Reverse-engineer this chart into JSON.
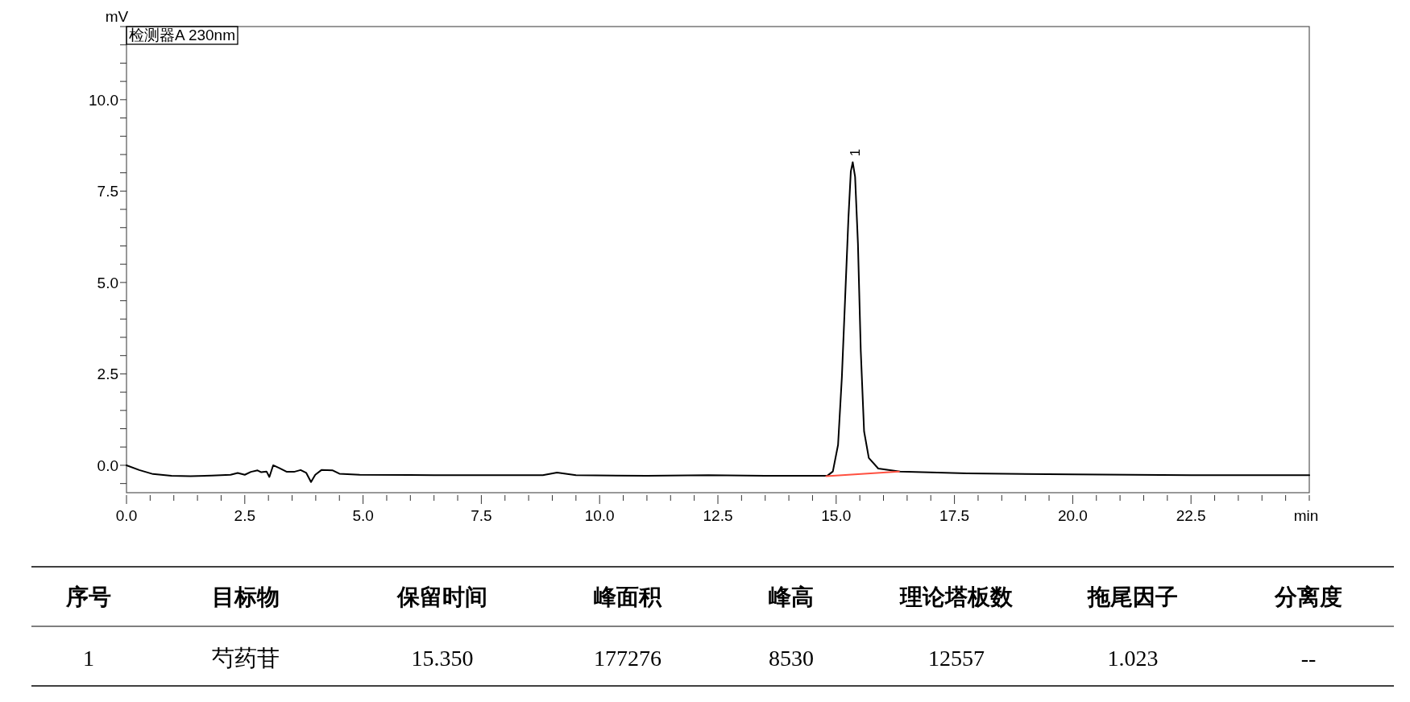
{
  "chart_data": {
    "type": "line",
    "title": "检测器A 230nm",
    "xlabel": "min",
    "ylabel": "mV",
    "xlim": [
      0,
      25
    ],
    "ylim": [
      -0.75,
      12
    ],
    "xticks": [
      {
        "value": 0,
        "label": "0.0"
      },
      {
        "value": 0.5,
        "label": null
      },
      {
        "value": 1,
        "label": null
      },
      {
        "value": 1.5,
        "label": null
      },
      {
        "value": 2,
        "label": null
      },
      {
        "value": 2.5,
        "label": "2.5"
      },
      {
        "value": 3,
        "label": null
      },
      {
        "value": 3.5,
        "label": null
      },
      {
        "value": 4,
        "label": null
      },
      {
        "value": 4.5,
        "label": null
      },
      {
        "value": 5,
        "label": "5.0"
      },
      {
        "value": 5.5,
        "label": null
      },
      {
        "value": 6,
        "label": null
      },
      {
        "value": 6.5,
        "label": null
      },
      {
        "value": 7,
        "label": null
      },
      {
        "value": 7.5,
        "label": "7.5"
      },
      {
        "value": 8,
        "label": null
      },
      {
        "value": 8.5,
        "label": null
      },
      {
        "value": 9,
        "label": null
      },
      {
        "value": 9.5,
        "label": null
      },
      {
        "value": 10,
        "label": "10.0"
      },
      {
        "value": 10.5,
        "label": null
      },
      {
        "value": 11,
        "label": null
      },
      {
        "value": 11.5,
        "label": null
      },
      {
        "value": 12,
        "label": null
      },
      {
        "value": 12.5,
        "label": "12.5"
      },
      {
        "value": 13,
        "label": null
      },
      {
        "value": 13.5,
        "label": null
      },
      {
        "value": 14,
        "label": null
      },
      {
        "value": 14.5,
        "label": null
      },
      {
        "value": 15,
        "label": "15.0"
      },
      {
        "value": 15.5,
        "label": null
      },
      {
        "value": 16,
        "label": null
      },
      {
        "value": 16.5,
        "label": null
      },
      {
        "value": 17,
        "label": null
      },
      {
        "value": 17.5,
        "label": "17.5"
      },
      {
        "value": 18,
        "label": null
      },
      {
        "value": 18.5,
        "label": null
      },
      {
        "value": 19,
        "label": null
      },
      {
        "value": 19.5,
        "label": null
      },
      {
        "value": 20,
        "label": "20.0"
      },
      {
        "value": 20.5,
        "label": null
      },
      {
        "value": 21,
        "label": null
      },
      {
        "value": 21.5,
        "label": null
      },
      {
        "value": 22,
        "label": null
      },
      {
        "value": 22.5,
        "label": "22.5"
      },
      {
        "value": 23,
        "label": null
      },
      {
        "value": 23.5,
        "label": null
      },
      {
        "value": 24,
        "label": null
      },
      {
        "value": 24.5,
        "label": null
      },
      {
        "value": 25,
        "label": null
      }
    ],
    "yticks": [
      {
        "value": -0.5,
        "label": null
      },
      {
        "value": 0,
        "label": "0.0"
      },
      {
        "value": 0.5,
        "label": null
      },
      {
        "value": 1,
        "label": null
      },
      {
        "value": 1.5,
        "label": null
      },
      {
        "value": 2,
        "label": null
      },
      {
        "value": 2.5,
        "label": "2.5"
      },
      {
        "value": 3,
        "label": null
      },
      {
        "value": 3.5,
        "label": null
      },
      {
        "value": 4,
        "label": null
      },
      {
        "value": 4.5,
        "label": null
      },
      {
        "value": 5,
        "label": "5.0"
      },
      {
        "value": 5.5,
        "label": null
      },
      {
        "value": 6,
        "label": null
      },
      {
        "value": 6.5,
        "label": null
      },
      {
        "value": 7,
        "label": null
      },
      {
        "value": 7.5,
        "label": "7.5"
      },
      {
        "value": 8,
        "label": null
      },
      {
        "value": 8.5,
        "label": null
      },
      {
        "value": 9,
        "label": null
      },
      {
        "value": 9.5,
        "label": null
      },
      {
        "value": 10,
        "label": "10.0"
      },
      {
        "value": 10.5,
        "label": null
      },
      {
        "value": 11,
        "label": null
      },
      {
        "value": 11.5,
        "label": null
      },
      {
        "value": 12,
        "label": null
      }
    ],
    "grid": false,
    "series": [
      {
        "color": "#000000",
        "x": [
          0,
          0.27,
          0.56,
          0.95,
          1.35,
          1.8,
          2.2,
          2.35,
          2.5,
          2.63,
          2.77,
          2.85,
          2.96,
          3.02,
          3.1,
          3.22,
          3.39,
          3.54,
          3.68,
          3.8,
          3.9,
          3.99,
          4.12,
          4.36,
          4.5,
          4.93,
          6.5,
          8.8,
          9.1,
          9.5,
          11,
          12.3,
          13.5,
          14.81,
          14.93,
          15.04,
          15.12,
          15.19,
          15.26,
          15.31,
          15.35,
          15.4,
          15.46,
          15.52,
          15.59,
          15.69,
          15.89,
          16.35,
          17.77,
          20,
          22.5,
          25
        ],
        "values": [
          0,
          -0.13,
          -0.24,
          -0.29,
          -0.3,
          -0.28,
          -0.26,
          -0.21,
          -0.26,
          -0.18,
          -0.14,
          -0.19,
          -0.17,
          -0.32,
          0,
          -0.07,
          -0.18,
          -0.18,
          -0.13,
          -0.21,
          -0.46,
          -0.26,
          -0.13,
          -0.14,
          -0.23,
          -0.26,
          -0.27,
          -0.27,
          -0.2,
          -0.27,
          -0.29,
          -0.27,
          -0.29,
          -0.29,
          -0.17,
          0.56,
          2.4,
          4.59,
          6.79,
          8.04,
          8.29,
          7.89,
          6.07,
          3.13,
          0.93,
          0.2,
          -0.09,
          -0.17,
          -0.22,
          -0.25,
          -0.27,
          -0.27
        ]
      },
      {
        "color": "#ff5040",
        "x": [
          14.79,
          16.33
        ],
        "values": [
          -0.3,
          -0.17
        ]
      }
    ],
    "annotations": [
      {
        "text": "1",
        "x": 15.35,
        "y": 8.29
      },
      "序号",
      "目标物",
      "保留时间",
      "峰面积",
      "峰高",
      "理论塔板数",
      "拖尾因子",
      "分离度",
      "1",
      "芍药苷",
      "15.350",
      "177276",
      "8530",
      "12557",
      "1.023",
      "--"
    ]
  }
}
